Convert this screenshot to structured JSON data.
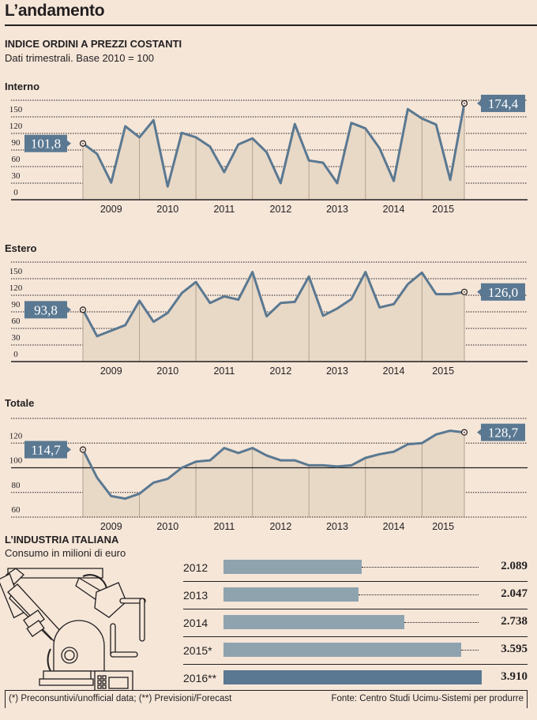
{
  "title": "L’andamento",
  "section1": {
    "heading": "INDICE ORDINI A PREZZI COSTANTI",
    "subheading": "Dati trimestrali.  Base 2010 = 100"
  },
  "section2": {
    "heading": "L’INDUSTRIA ITALIANA",
    "subheading": "Consumo in milioni di euro",
    "illustration": "robot-arm-icon"
  },
  "footer": {
    "note": "(*) Preconsuntivi/unofficial data; (**) Previsioni/Forecast",
    "source": "Fonte: Centro Studi Ucimu-Sistemi per produrre"
  },
  "colors": {
    "background": "#f5e6d8",
    "line": "#5a7891",
    "area": "#e8d8c6",
    "bar": "#8fa3af",
    "bar_highlight": "#5a7891"
  },
  "chart_data": [
    {
      "type": "area",
      "title": "Interno",
      "xlabel": "",
      "ylabel": "",
      "x_ticks": [
        "2009",
        "2010",
        "2011",
        "2012",
        "2013",
        "2014",
        "2015"
      ],
      "y_ticks": [
        "0",
        "30",
        "60",
        "90",
        "120",
        "150"
      ],
      "ylim": [
        0,
        180
      ],
      "grid": true,
      "start_label": "101,8",
      "end_label": "174,4",
      "x": [
        "2008Q4",
        "2009Q1",
        "2009Q2",
        "2009Q3",
        "2009Q4",
        "2010Q1",
        "2010Q2",
        "2010Q3",
        "2010Q4",
        "2011Q1",
        "2011Q2",
        "2011Q3",
        "2011Q4",
        "2012Q1",
        "2012Q2",
        "2012Q3",
        "2012Q4",
        "2013Q1",
        "2013Q2",
        "2013Q3",
        "2013Q4",
        "2014Q1",
        "2014Q2",
        "2014Q3",
        "2014Q4",
        "2015Q1",
        "2015Q2",
        "2015Q3"
      ],
      "values": [
        101.8,
        83,
        31,
        133,
        113,
        144,
        24,
        121,
        113,
        96,
        50,
        100,
        111,
        86,
        30,
        137,
        71,
        67,
        30,
        139,
        129,
        93,
        34,
        164,
        147,
        136,
        36,
        174.4
      ]
    },
    {
      "type": "area",
      "title": "Estero",
      "xlabel": "",
      "ylabel": "",
      "x_ticks": [
        "2009",
        "2010",
        "2011",
        "2012",
        "2013",
        "2014",
        "2015"
      ],
      "y_ticks": [
        "0",
        "30",
        "60",
        "90",
        "120",
        "150"
      ],
      "ylim": [
        0,
        180
      ],
      "grid": true,
      "start_label": "93,8",
      "end_label": "126,0",
      "x": [
        "2008Q4",
        "2009Q1",
        "2009Q2",
        "2009Q3",
        "2009Q4",
        "2010Q1",
        "2010Q2",
        "2010Q3",
        "2010Q4",
        "2011Q1",
        "2011Q2",
        "2011Q3",
        "2011Q4",
        "2012Q1",
        "2012Q2",
        "2012Q3",
        "2012Q4",
        "2013Q1",
        "2013Q2",
        "2013Q3",
        "2013Q4",
        "2014Q1",
        "2014Q2",
        "2014Q3",
        "2014Q4",
        "2015Q1",
        "2015Q2",
        "2015Q3"
      ],
      "values": [
        93.8,
        46,
        56,
        66,
        110,
        72,
        88,
        124,
        144,
        106,
        118,
        112,
        162,
        82,
        106,
        108,
        154,
        83,
        96,
        113,
        162,
        98,
        104,
        140,
        161,
        122,
        122,
        126.0
      ]
    },
    {
      "type": "area",
      "title": "Totale",
      "xlabel": "",
      "ylabel": "",
      "x_ticks": [
        "2009",
        "2010",
        "2011",
        "2012",
        "2013",
        "2014",
        "2015"
      ],
      "y_ticks": [
        "60",
        "80",
        "100",
        "120"
      ],
      "ylim": [
        60,
        140
      ],
      "reference_line": 100,
      "grid": true,
      "start_label": "114,7",
      "end_label": "128,7",
      "x": [
        "2008Q4",
        "2009Q1",
        "2009Q2",
        "2009Q3",
        "2009Q4",
        "2010Q1",
        "2010Q2",
        "2010Q3",
        "2010Q4",
        "2011Q1",
        "2011Q2",
        "2011Q3",
        "2011Q4",
        "2012Q1",
        "2012Q2",
        "2012Q3",
        "2012Q4",
        "2013Q1",
        "2013Q2",
        "2013Q3",
        "2013Q4",
        "2014Q1",
        "2014Q2",
        "2014Q3",
        "2014Q4",
        "2015Q1",
        "2015Q2",
        "2015Q3"
      ],
      "values": [
        114.7,
        92,
        77,
        75,
        79,
        88,
        91,
        100,
        105,
        106,
        116,
        112,
        116,
        110,
        106,
        106,
        102,
        102,
        101,
        102,
        108,
        111,
        113,
        119,
        120,
        127,
        130,
        128.7
      ]
    },
    {
      "type": "bar",
      "orientation": "horizontal",
      "title": "Consumo in milioni di euro",
      "categories": [
        "2012",
        "2013",
        "2014",
        "2015*",
        "2016**"
      ],
      "values": [
        2089,
        2047,
        2738,
        3595,
        3910
      ],
      "value_labels": [
        "2.089",
        "2.047",
        "2.738",
        "3.595",
        "3.910"
      ],
      "highlight": "2016**"
    }
  ]
}
